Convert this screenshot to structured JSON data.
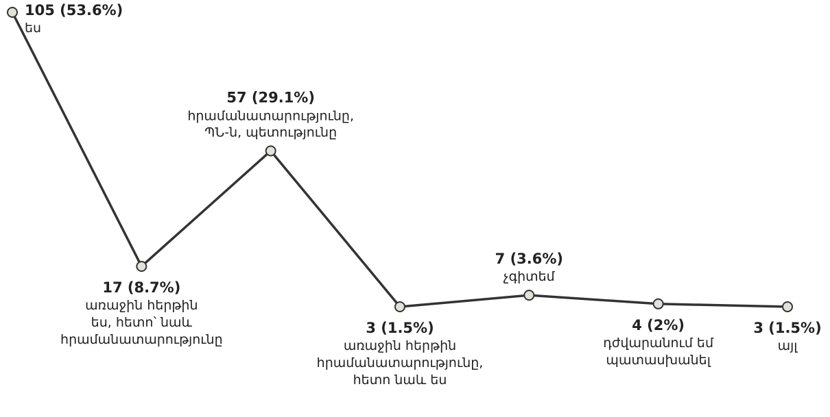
{
  "chart_data": {
    "type": "line",
    "categories": [
      "ես",
      "առաջին հերթին\nես, հետո՝ նաև\nհրամանատարությունը",
      "հրամանատարությունը,\nՊՆ-ն, պետությունը",
      "առաջին հերթին\nհրամանատարությունը,\nհետո նաև ես",
      "չգիտեմ",
      "դժվարանում եմ\nպատասխանել",
      "այլ"
    ],
    "values": [
      105,
      17,
      57,
      3,
      7,
      4,
      3
    ],
    "value_labels": [
      "105 (53.6%)",
      "17 (8.7%)",
      "57 (29.1%)",
      "3 (1.5%)",
      "7 (3.6%)",
      "4 (2%)",
      "3 (1.5%)"
    ],
    "color": "#333333"
  }
}
